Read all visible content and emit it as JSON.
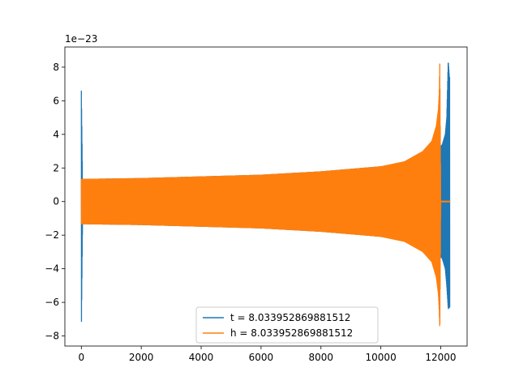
{
  "chart_data": {
    "type": "line",
    "title": "",
    "xlabel": "",
    "ylabel": "",
    "y_offset_label": "1e−23",
    "xlim": [
      -550,
      12880
    ],
    "ylim": [
      -8.6,
      9.2
    ],
    "x_ticks": [
      0,
      2000,
      4000,
      6000,
      8000,
      10000,
      12000
    ],
    "x_tick_labels": [
      "0",
      "2000",
      "4000",
      "6000",
      "8000",
      "10000",
      "12000"
    ],
    "y_ticks": [
      -8,
      -6,
      -4,
      -2,
      0,
      2,
      4,
      6,
      8
    ],
    "y_tick_labels": [
      "−8",
      "−6",
      "−4",
      "−2",
      "0",
      "2",
      "4",
      "6",
      "8"
    ],
    "grid": false,
    "legend_position": "lower-center",
    "series": [
      {
        "name": "t = 8.033952869881512",
        "color": "#1f77b4",
        "envelope_x": [
          0,
          40,
          2000,
          4000,
          6000,
          8000,
          10000,
          11000,
          11600,
          11900,
          12050,
          12150,
          12200,
          12250,
          12290
        ],
        "envelope_upper": [
          6.6,
          1.35,
          1.4,
          1.5,
          1.6,
          1.8,
          2.1,
          2.4,
          2.8,
          3.1,
          3.4,
          4.0,
          5.0,
          8.4,
          7.4
        ],
        "envelope_lower": [
          -7.8,
          -1.35,
          -1.4,
          -1.5,
          -1.6,
          -1.8,
          -2.1,
          -2.4,
          -2.8,
          -3.1,
          -3.4,
          -4.0,
          -5.0,
          -6.4,
          -6.3
        ],
        "x_range": [
          0,
          12300
        ]
      },
      {
        "name": "h = 8.033952869881512",
        "color": "#ff7f0e",
        "envelope_x": [
          0,
          2000,
          4000,
          6000,
          8000,
          10000,
          10800,
          11400,
          11700,
          11850,
          11920,
          11950,
          11970,
          12000,
          12300
        ],
        "envelope_upper": [
          1.35,
          1.4,
          1.5,
          1.6,
          1.8,
          2.1,
          2.4,
          3.0,
          3.6,
          4.5,
          5.5,
          6.5,
          8.4,
          0.05,
          0.05
        ],
        "envelope_lower": [
          -1.35,
          -1.4,
          -1.5,
          -1.6,
          -1.8,
          -2.1,
          -2.4,
          -3.0,
          -3.6,
          -4.5,
          -5.5,
          -6.5,
          -7.8,
          -0.05,
          -0.05
        ],
        "x_range": [
          0,
          12300
        ]
      }
    ]
  }
}
